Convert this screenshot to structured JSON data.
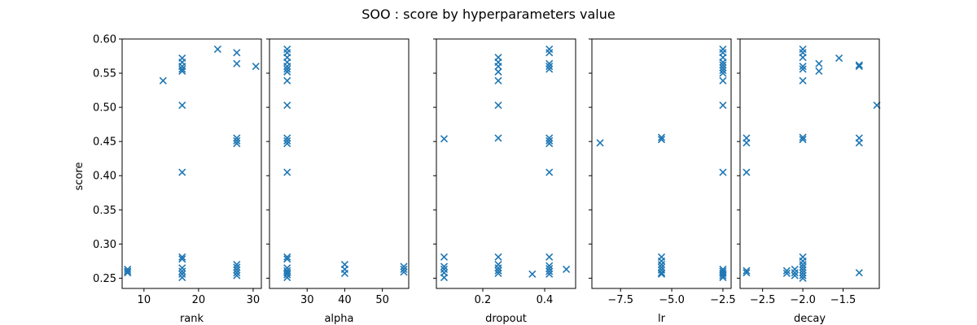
{
  "figure": {
    "title": "SOO : score by hyperparameters value",
    "ylabel": "score",
    "marker_color": "#1f77b4",
    "marker": "x"
  },
  "chart_data": [
    {
      "type": "scatter",
      "xlabel": "rank",
      "ylabel": "score",
      "xlim": [
        6,
        31.5
      ],
      "ylim": [
        0.235,
        0.6
      ],
      "xticks": [
        10,
        20,
        30
      ],
      "xtick_labels": [
        "10",
        "20",
        "30"
      ],
      "yticks": [
        0.25,
        0.3,
        0.35,
        0.4,
        0.45,
        0.5,
        0.55,
        0.6
      ],
      "ytick_labels": [
        "0.25",
        "0.30",
        "0.35",
        "0.40",
        "0.45",
        "0.50",
        "0.55",
        "0.60"
      ],
      "points": [
        [
          7,
          0.263
        ],
        [
          7,
          0.26
        ],
        [
          7,
          0.258
        ],
        [
          13.5,
          0.539
        ],
        [
          17,
          0.572
        ],
        [
          17,
          0.566
        ],
        [
          17,
          0.56
        ],
        [
          17,
          0.556
        ],
        [
          17,
          0.553
        ],
        [
          17,
          0.503
        ],
        [
          17,
          0.405
        ],
        [
          17,
          0.281
        ],
        [
          17,
          0.278
        ],
        [
          17,
          0.265
        ],
        [
          17,
          0.26
        ],
        [
          17,
          0.256
        ],
        [
          17,
          0.251
        ],
        [
          23.5,
          0.585
        ],
        [
          27,
          0.58
        ],
        [
          27,
          0.564
        ],
        [
          27,
          0.455
        ],
        [
          27,
          0.451
        ],
        [
          27,
          0.447
        ],
        [
          27,
          0.27
        ],
        [
          27,
          0.266
        ],
        [
          27,
          0.262
        ],
        [
          27,
          0.258
        ],
        [
          27,
          0.254
        ],
        [
          30.5,
          0.56
        ]
      ]
    },
    {
      "type": "scatter",
      "xlabel": "alpha",
      "xlim": [
        20,
        57
      ],
      "ylim": [
        0.235,
        0.6
      ],
      "xticks": [
        30,
        40,
        50
      ],
      "xtick_labels": [
        "30",
        "40",
        "50"
      ],
      "points": [
        [
          24.7,
          0.585
        ],
        [
          24.7,
          0.58
        ],
        [
          24.7,
          0.573
        ],
        [
          24.7,
          0.566
        ],
        [
          24.7,
          0.56
        ],
        [
          24.7,
          0.556
        ],
        [
          24.7,
          0.552
        ],
        [
          24.7,
          0.539
        ],
        [
          24.7,
          0.503
        ],
        [
          24.7,
          0.455
        ],
        [
          24.7,
          0.451
        ],
        [
          24.7,
          0.447
        ],
        [
          24.7,
          0.405
        ],
        [
          24.7,
          0.281
        ],
        [
          24.7,
          0.278
        ],
        [
          24.7,
          0.265
        ],
        [
          24.7,
          0.261
        ],
        [
          24.7,
          0.258
        ],
        [
          24.7,
          0.255
        ],
        [
          24.7,
          0.251
        ],
        [
          40,
          0.27
        ],
        [
          40,
          0.263
        ],
        [
          40,
          0.257
        ],
        [
          55.7,
          0.267
        ],
        [
          55.7,
          0.263
        ],
        [
          55.7,
          0.259
        ]
      ]
    },
    {
      "type": "scatter",
      "xlabel": "dropout",
      "xlim": [
        0.05,
        0.5
      ],
      "ylim": [
        0.235,
        0.6
      ],
      "xticks": [
        0.2,
        0.4
      ],
      "xtick_labels": [
        "0.2",
        "0.4"
      ],
      "points": [
        [
          0.075,
          0.454
        ],
        [
          0.075,
          0.281
        ],
        [
          0.075,
          0.267
        ],
        [
          0.075,
          0.263
        ],
        [
          0.075,
          0.258
        ],
        [
          0.075,
          0.251
        ],
        [
          0.25,
          0.573
        ],
        [
          0.25,
          0.566
        ],
        [
          0.25,
          0.56
        ],
        [
          0.25,
          0.552
        ],
        [
          0.25,
          0.539
        ],
        [
          0.25,
          0.503
        ],
        [
          0.25,
          0.455
        ],
        [
          0.25,
          0.281
        ],
        [
          0.25,
          0.27
        ],
        [
          0.25,
          0.265
        ],
        [
          0.25,
          0.261
        ],
        [
          0.25,
          0.257
        ],
        [
          0.36,
          0.256
        ],
        [
          0.415,
          0.585
        ],
        [
          0.415,
          0.58
        ],
        [
          0.415,
          0.564
        ],
        [
          0.415,
          0.56
        ],
        [
          0.415,
          0.556
        ],
        [
          0.415,
          0.455
        ],
        [
          0.415,
          0.451
        ],
        [
          0.415,
          0.447
        ],
        [
          0.415,
          0.405
        ],
        [
          0.415,
          0.281
        ],
        [
          0.415,
          0.268
        ],
        [
          0.415,
          0.264
        ],
        [
          0.415,
          0.26
        ],
        [
          0.415,
          0.256
        ],
        [
          0.47,
          0.263
        ]
      ]
    },
    {
      "type": "scatter",
      "xlabel": "lr",
      "xlim": [
        -8.9,
        -2.1
      ],
      "ylim": [
        0.235,
        0.6
      ],
      "xticks": [
        -7.5,
        -5.0,
        -2.5
      ],
      "xtick_labels": [
        "−7.5",
        "−5.0",
        "−2.5"
      ],
      "points": [
        [
          -8.5,
          0.448
        ],
        [
          -5.5,
          0.456
        ],
        [
          -5.5,
          0.453
        ],
        [
          -5.5,
          0.281
        ],
        [
          -5.5,
          0.275
        ],
        [
          -5.5,
          0.27
        ],
        [
          -5.5,
          0.266
        ],
        [
          -5.5,
          0.262
        ],
        [
          -5.5,
          0.258
        ],
        [
          -5.5,
          0.256
        ],
        [
          -2.5,
          0.585
        ],
        [
          -2.5,
          0.58
        ],
        [
          -2.5,
          0.573
        ],
        [
          -2.5,
          0.566
        ],
        [
          -2.5,
          0.562
        ],
        [
          -2.5,
          0.558
        ],
        [
          -2.5,
          0.554
        ],
        [
          -2.5,
          0.55
        ],
        [
          -2.5,
          0.539
        ],
        [
          -2.5,
          0.503
        ],
        [
          -2.5,
          0.405
        ],
        [
          -2.5,
          0.263
        ],
        [
          -2.5,
          0.26
        ],
        [
          -2.5,
          0.257
        ],
        [
          -2.5,
          0.254
        ],
        [
          -2.5,
          0.251
        ]
      ]
    },
    {
      "type": "scatter",
      "xlabel": "decay",
      "xlim": [
        -2.78,
        -1.05
      ],
      "ylim": [
        0.235,
        0.6
      ],
      "xticks": [
        -2.5,
        -2.0,
        -1.5
      ],
      "xtick_labels": [
        "−2.5",
        "−2.0",
        "−1.5"
      ],
      "points": [
        [
          -2.7,
          0.455
        ],
        [
          -2.7,
          0.448
        ],
        [
          -2.7,
          0.405
        ],
        [
          -2.7,
          0.261
        ],
        [
          -2.7,
          0.258
        ],
        [
          -2.2,
          0.261
        ],
        [
          -2.2,
          0.257
        ],
        [
          -2.1,
          0.263
        ],
        [
          -2.1,
          0.258
        ],
        [
          -2.1,
          0.254
        ],
        [
          -2.0,
          0.585
        ],
        [
          -2.0,
          0.58
        ],
        [
          -2.0,
          0.573
        ],
        [
          -2.0,
          0.56
        ],
        [
          -2.0,
          0.556
        ],
        [
          -2.0,
          0.539
        ],
        [
          -2.0,
          0.456
        ],
        [
          -2.0,
          0.453
        ],
        [
          -2.0,
          0.281
        ],
        [
          -2.0,
          0.275
        ],
        [
          -2.0,
          0.27
        ],
        [
          -2.0,
          0.266
        ],
        [
          -2.0,
          0.262
        ],
        [
          -2.0,
          0.258
        ],
        [
          -2.0,
          0.254
        ],
        [
          -2.0,
          0.25
        ],
        [
          -1.8,
          0.564
        ],
        [
          -1.8,
          0.553
        ],
        [
          -1.55,
          0.572
        ],
        [
          -1.3,
          0.562
        ],
        [
          -1.3,
          0.56
        ],
        [
          -1.3,
          0.455
        ],
        [
          -1.3,
          0.448
        ],
        [
          -1.3,
          0.258
        ],
        [
          -1.08,
          0.503
        ]
      ]
    }
  ]
}
